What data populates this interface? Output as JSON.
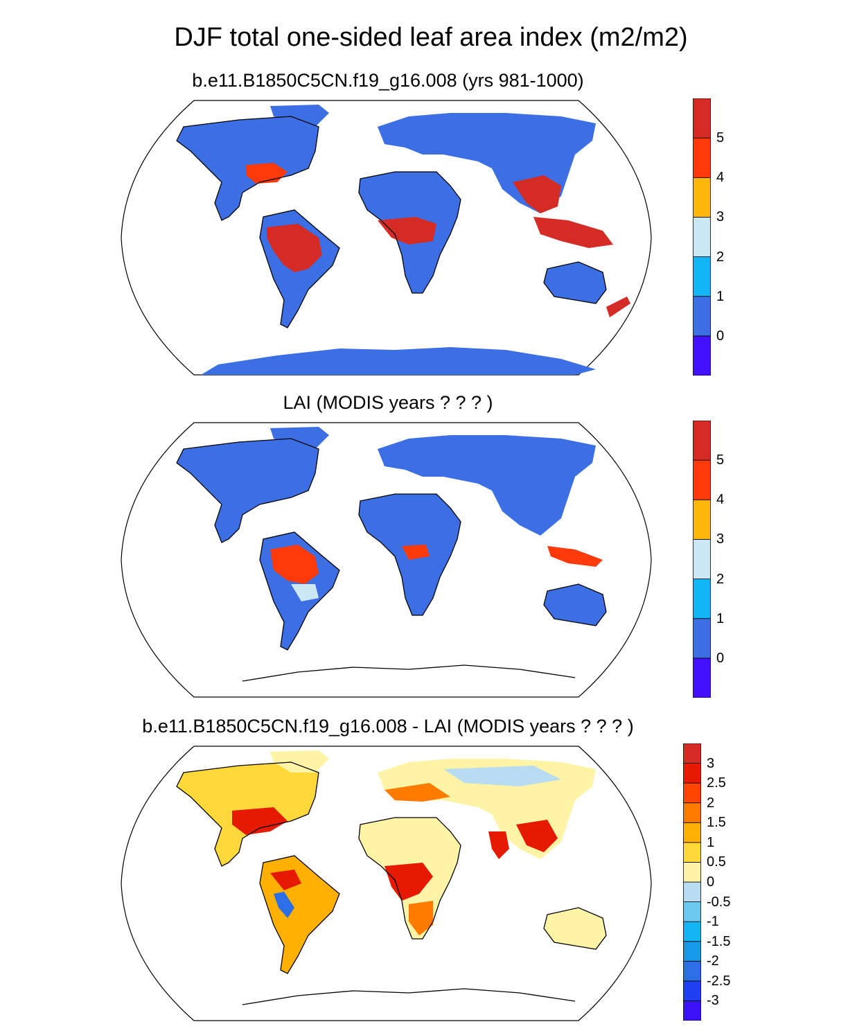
{
  "title": "DJF total one-sided leaf area index (m2/m2)",
  "panels": [
    {
      "id": "model",
      "title": "b.e11.B1850C5CN.f19_g16.008 (yrs 981-1000)",
      "colorbar": {
        "colors": [
          "#4411ff",
          "#3b6fe3",
          "#12b5f5",
          "#cde8f5",
          "#ffb60d",
          "#ff3a0a",
          "#d42b25"
        ],
        "labels": [
          "0",
          "1",
          "2",
          "3",
          "4",
          "5"
        ]
      },
      "has_antarctica": true
    },
    {
      "id": "obs",
      "title": "LAI (MODIS years ? ? ? )",
      "colorbar": {
        "colors": [
          "#4411ff",
          "#3b6fe3",
          "#12b5f5",
          "#cde8f5",
          "#ffb60d",
          "#ff3a0a",
          "#d42b25"
        ],
        "labels": [
          "0",
          "1",
          "2",
          "3",
          "4",
          "5"
        ]
      },
      "has_antarctica": false
    },
    {
      "id": "diff",
      "title": "b.e11.B1850C5CN.f19_g16.008 - LAI (MODIS years ? ? ? )",
      "colorbar": {
        "colors": [
          "#3b14f5",
          "#1f3ff0",
          "#2b6ee6",
          "#1598e8",
          "#14b5f5",
          "#6cc8ef",
          "#b8dcf2",
          "#fff3a6",
          "#ffd93a",
          "#ffb000",
          "#ff7b00",
          "#ff4500",
          "#e51a00",
          "#d42b25"
        ],
        "labels": [
          "-3",
          "-2.5",
          "-2",
          "-1.5",
          "-1",
          "-0.5",
          "0",
          "0.5",
          "1",
          "1.5",
          "2",
          "2.5",
          "3"
        ]
      },
      "has_antarctica": false
    }
  ]
}
